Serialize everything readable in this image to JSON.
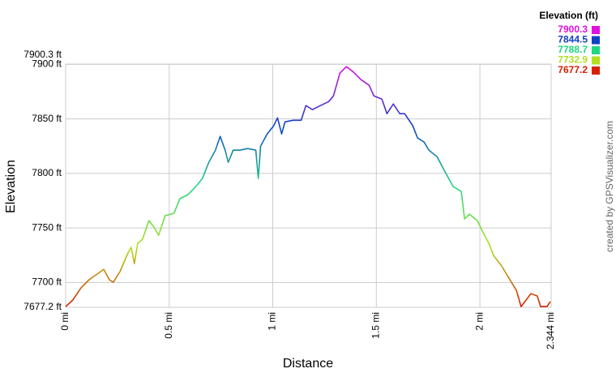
{
  "chart_data": {
    "type": "line",
    "xlabel": "Distance",
    "ylabel": "Elevation",
    "credit": "created by GPSVisualizer.com",
    "x": [
      0,
      0.035,
      0.074,
      0.113,
      0.152,
      0.184,
      0.211,
      0.23,
      0.262,
      0.301,
      0.316,
      0.332,
      0.348,
      0.371,
      0.402,
      0.426,
      0.449,
      0.48,
      0.523,
      0.551,
      0.59,
      0.621,
      0.66,
      0.691,
      0.723,
      0.746,
      0.77,
      0.785,
      0.809,
      0.84,
      0.879,
      0.918,
      0.93,
      0.941,
      0.973,
      1.004,
      1.023,
      1.043,
      1.059,
      1.098,
      1.137,
      1.16,
      1.191,
      1.23,
      1.27,
      1.293,
      1.324,
      1.355,
      1.387,
      1.426,
      1.465,
      1.488,
      1.527,
      1.551,
      1.582,
      1.613,
      1.637,
      1.676,
      1.699,
      1.73,
      1.754,
      1.793,
      1.832,
      1.871,
      1.91,
      1.926,
      1.949,
      1.988,
      2.012,
      2.043,
      2.066,
      2.105,
      2.145,
      2.176,
      2.199,
      2.223,
      2.246,
      2.277,
      2.293,
      2.324,
      2.34
    ],
    "values": [
      7677.9,
      7683.9,
      7695.0,
      7702.5,
      7707.7,
      7712.1,
      7702.5,
      7700.2,
      7709.9,
      7727.0,
      7732.2,
      7717.3,
      7735.9,
      7739.6,
      7756.7,
      7750.8,
      7743.3,
      7761.2,
      7763.4,
      7776.8,
      7780.5,
      7786.4,
      7795.3,
      7810.2,
      7821.3,
      7834.0,
      7821.3,
      7810.2,
      7821.3,
      7821.3,
      7822.8,
      7821.3,
      7795.3,
      7825.0,
      7836.2,
      7843.6,
      7851.0,
      7836.2,
      7847.3,
      7848.8,
      7848.8,
      7862.2,
      7858.5,
      7862.2,
      7865.9,
      7871.1,
      7891.9,
      7897.9,
      7893.4,
      7886.0,
      7880.8,
      7871.1,
      7868.1,
      7854.8,
      7863.7,
      7854.8,
      7854.8,
      7843.6,
      7832.5,
      7828.8,
      7821.3,
      7815.4,
      7801.3,
      7787.9,
      7783.4,
      7758.2,
      7762.6,
      7756.7,
      7747.0,
      7735.9,
      7724.7,
      7715.1,
      7702.5,
      7692.8,
      7677.9,
      7683.9,
      7689.8,
      7687.6,
      7677.9,
      7677.9,
      7682.4
    ],
    "xlim": [
      0,
      2.344
    ],
    "xticks": [
      {
        "value": 0,
        "label": "0 mi"
      },
      {
        "value": 0.5,
        "label": "0.5 mi"
      },
      {
        "value": 1,
        "label": "1 mi"
      },
      {
        "value": 1.5,
        "label": "1.5 mi"
      },
      {
        "value": 2,
        "label": "2 mi"
      },
      {
        "value": 2.344,
        "label": "2.344 mi"
      }
    ],
    "ylim": [
      7677.2,
      7900.3
    ],
    "yticks": [
      {
        "value": 7677.2,
        "label": "7677.2 ft"
      },
      {
        "value": 7700,
        "label": "7700 ft"
      },
      {
        "value": 7750,
        "label": "7750 ft"
      },
      {
        "value": 7800,
        "label": "7800 ft"
      },
      {
        "value": 7850,
        "label": "7850 ft"
      },
      {
        "value": 7900,
        "label": "7900 ft"
      },
      {
        "value": 7900.3,
        "label": "7900.3 ft"
      }
    ],
    "grid": true,
    "legend": {
      "title": "Elevation (ft)",
      "position": "top-right",
      "entries": [
        {
          "value": 7900.3,
          "color": "#e010e0"
        },
        {
          "value": 7844.5,
          "color": "#1040c8"
        },
        {
          "value": 7788.7,
          "color": "#20d880"
        },
        {
          "value": 7732.9,
          "color": "#b0e020"
        },
        {
          "value": 7677.2,
          "color": "#d82000"
        }
      ]
    }
  }
}
